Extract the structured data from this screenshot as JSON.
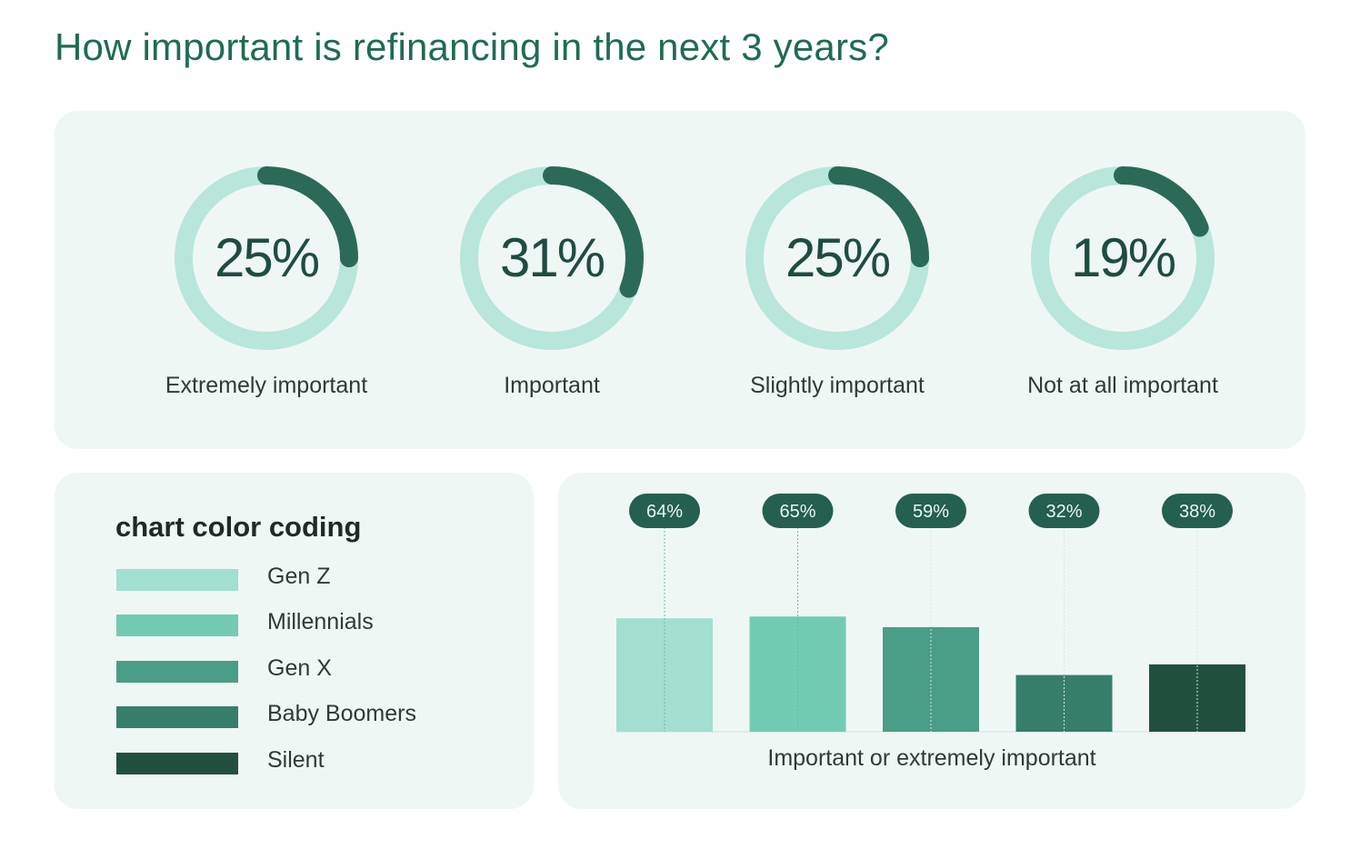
{
  "title": "How important is refinancing in the next 3 years?",
  "colors": {
    "title": "#1f6b55",
    "panel_bg": "#eff7f5",
    "ring_track": "#a5e0d1",
    "ring_progress": "#2b6a57",
    "pill_bg": "#245f50"
  },
  "donuts": [
    {
      "value": "25%",
      "fraction": 0.25,
      "label": "Extremely important"
    },
    {
      "value": "31%",
      "fraction": 0.31,
      "label": "Important"
    },
    {
      "value": "25%",
      "fraction": 0.25,
      "label": "Slightly important"
    },
    {
      "value": "19%",
      "fraction": 0.19,
      "label": "Not at all important"
    }
  ],
  "legend": {
    "title": "chart color coding",
    "items": [
      {
        "label": "Gen Z",
        "color": "#a2dfd0"
      },
      {
        "label": "Millennials",
        "color": "#72cbb2"
      },
      {
        "label": "Gen X",
        "color": "#4a9d86"
      },
      {
        "label": "Baby Boomers",
        "color": "#377e6a"
      },
      {
        "label": "Silent",
        "color": "#22503f"
      }
    ]
  },
  "chart_data": {
    "type": "bar",
    "categories": [
      "Gen Z",
      "Millennials",
      "Gen X",
      "Baby Boomers",
      "Silent"
    ],
    "values": [
      64,
      65,
      59,
      32,
      38
    ],
    "value_labels": [
      "64%",
      "65%",
      "59%",
      "32%",
      "38%"
    ],
    "xlabel": "Important or extremely important",
    "ylabel": "",
    "ylim": [
      0,
      100
    ],
    "grid": false
  }
}
